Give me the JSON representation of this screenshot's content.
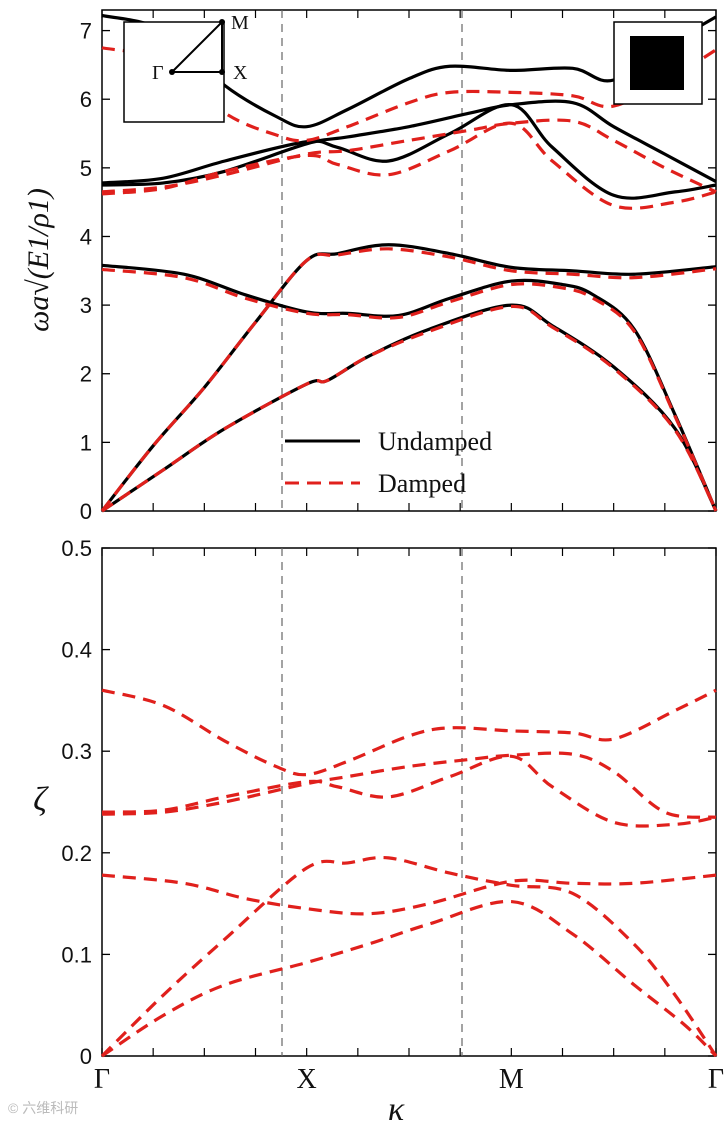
{
  "chart_data": [
    {
      "type": "line",
      "title": "",
      "ylabel": "ωa√(E1/ρ1)",
      "xlabel": "",
      "ylim": [
        0,
        7.3
      ],
      "yticks": [
        0,
        1,
        2,
        3,
        4,
        5,
        6,
        7
      ],
      "x_kpoints": [
        "Γ",
        "X",
        "M",
        "Γ"
      ],
      "x_kpoint_positions": [
        0,
        1,
        2,
        3
      ],
      "xlim": [
        0,
        3
      ],
      "legend": {
        "position": "center-bottom",
        "entries": [
          "Undamped",
          "Damped"
        ]
      },
      "inset_bz_labels": {
        "gamma": "Γ",
        "x": "X",
        "m": "M"
      },
      "inset_unit_cell": "filled-square",
      "series": [
        {
          "name": "Undamped",
          "style": "solid",
          "color": "#000000",
          "bands": [
            [
              [
                0,
                0
              ],
              [
                0.25,
                0.95
              ],
              [
                0.5,
                1.8
              ],
              [
                0.75,
                2.75
              ],
              [
                1,
                3.65
              ],
              [
                1.15,
                3.75
              ],
              [
                1.4,
                3.88
              ],
              [
                1.7,
                3.75
              ],
              [
                2,
                3.55
              ],
              [
                2.3,
                3.5
              ],
              [
                2.6,
                3.45
              ],
              [
                3,
                3.56
              ]
            ],
            [
              [
                0,
                0
              ],
              [
                0.3,
                0.6
              ],
              [
                0.6,
                1.2
              ],
              [
                1,
                1.85
              ],
              [
                1.1,
                1.9
              ],
              [
                1.3,
                2.25
              ],
              [
                1.6,
                2.65
              ],
              [
                2,
                3.0
              ],
              [
                2.2,
                2.7
              ],
              [
                2.5,
                2.1
              ],
              [
                2.8,
                1.2
              ],
              [
                3,
                0
              ]
            ],
            [
              [
                0,
                3.58
              ],
              [
                0.4,
                3.45
              ],
              [
                0.7,
                3.15
              ],
              [
                1,
                2.9
              ],
              [
                1.2,
                2.88
              ],
              [
                1.45,
                2.85
              ],
              [
                1.7,
                3.1
              ],
              [
                2,
                3.35
              ],
              [
                2.25,
                3.3
              ],
              [
                2.4,
                3.15
              ],
              [
                2.6,
                2.65
              ],
              [
                2.8,
                1.4
              ],
              [
                3,
                0
              ]
            ],
            [
              [
                0,
                4.75
              ],
              [
                0.3,
                4.78
              ],
              [
                0.6,
                4.95
              ],
              [
                1,
                5.35
              ],
              [
                1.2,
                5.45
              ],
              [
                1.5,
                5.6
              ],
              [
                1.8,
                5.8
              ],
              [
                2,
                5.92
              ],
              [
                2.3,
                5.95
              ],
              [
                2.5,
                5.6
              ],
              [
                2.75,
                5.2
              ],
              [
                3,
                4.8
              ]
            ],
            [
              [
                0,
                4.78
              ],
              [
                0.3,
                4.85
              ],
              [
                0.6,
                5.1
              ],
              [
                1,
                5.38
              ],
              [
                1.15,
                5.3
              ],
              [
                1.4,
                5.1
              ],
              [
                1.7,
                5.5
              ],
              [
                2,
                5.92
              ],
              [
                2.2,
                5.3
              ],
              [
                2.5,
                4.6
              ],
              [
                2.8,
                4.65
              ],
              [
                3,
                4.75
              ]
            ],
            [
              [
                0,
                7.22
              ],
              [
                0.3,
                7.0
              ],
              [
                0.6,
                6.2
              ],
              [
                0.85,
                5.75
              ],
              [
                1,
                5.6
              ],
              [
                1.2,
                5.85
              ],
              [
                1.5,
                6.3
              ],
              [
                1.7,
                6.48
              ],
              [
                2,
                6.42
              ],
              [
                2.3,
                6.45
              ],
              [
                2.5,
                6.28
              ],
              [
                2.8,
                6.85
              ],
              [
                3,
                7.2
              ]
            ]
          ]
        },
        {
          "name": "Damped",
          "style": "dashed",
          "color": "#e0201c",
          "bands": [
            [
              [
                0,
                0
              ],
              [
                0.25,
                0.95
              ],
              [
                0.5,
                1.8
              ],
              [
                0.75,
                2.75
              ],
              [
                1,
                3.65
              ],
              [
                1.15,
                3.73
              ],
              [
                1.4,
                3.82
              ],
              [
                1.7,
                3.7
              ],
              [
                2,
                3.5
              ],
              [
                2.3,
                3.45
              ],
              [
                2.6,
                3.4
              ],
              [
                3,
                3.53
              ]
            ],
            [
              [
                0,
                0
              ],
              [
                0.3,
                0.6
              ],
              [
                0.6,
                1.2
              ],
              [
                1,
                1.85
              ],
              [
                1.1,
                1.9
              ],
              [
                1.3,
                2.25
              ],
              [
                1.6,
                2.62
              ],
              [
                2,
                2.98
              ],
              [
                2.2,
                2.68
              ],
              [
                2.5,
                2.08
              ],
              [
                2.8,
                1.18
              ],
              [
                3,
                0
              ]
            ],
            [
              [
                0,
                3.52
              ],
              [
                0.4,
                3.4
              ],
              [
                0.7,
                3.1
              ],
              [
                1,
                2.88
              ],
              [
                1.2,
                2.86
              ],
              [
                1.45,
                2.82
              ],
              [
                1.7,
                3.05
              ],
              [
                2,
                3.3
              ],
              [
                2.25,
                3.25
              ],
              [
                2.4,
                3.1
              ],
              [
                2.6,
                2.62
              ],
              [
                2.8,
                1.38
              ],
              [
                3,
                0
              ]
            ],
            [
              [
                0,
                4.65
              ],
              [
                0.3,
                4.72
              ],
              [
                0.6,
                4.9
              ],
              [
                1,
                5.2
              ],
              [
                1.2,
                5.25
              ],
              [
                1.5,
                5.4
              ],
              [
                1.8,
                5.55
              ],
              [
                2,
                5.65
              ],
              [
                2.3,
                5.68
              ],
              [
                2.5,
                5.4
              ],
              [
                2.75,
                5.0
              ],
              [
                3,
                4.65
              ]
            ],
            [
              [
                0,
                4.62
              ],
              [
                0.3,
                4.7
              ],
              [
                0.6,
                4.95
              ],
              [
                1,
                5.18
              ],
              [
                1.15,
                5.05
              ],
              [
                1.4,
                4.9
              ],
              [
                1.7,
                5.25
              ],
              [
                2,
                5.65
              ],
              [
                2.2,
                5.1
              ],
              [
                2.5,
                4.45
              ],
              [
                2.8,
                4.5
              ],
              [
                3,
                4.65
              ]
            ],
            [
              [
                0,
                6.75
              ],
              [
                0.3,
                6.55
              ],
              [
                0.6,
                5.8
              ],
              [
                0.85,
                5.48
              ],
              [
                1,
                5.4
              ],
              [
                1.2,
                5.6
              ],
              [
                1.5,
                5.95
              ],
              [
                1.7,
                6.1
              ],
              [
                2,
                6.1
              ],
              [
                2.3,
                6.05
              ],
              [
                2.5,
                5.9
              ],
              [
                2.8,
                6.35
              ],
              [
                3,
                6.72
              ]
            ]
          ]
        }
      ]
    },
    {
      "type": "line",
      "title": "",
      "ylabel": "ζ",
      "xlabel": "κ",
      "ylim": [
        0,
        0.5
      ],
      "yticks": [
        "0",
        "0.1",
        "0.2",
        "0.3",
        "0.4",
        "0.5"
      ],
      "x_kpoints": [
        "Γ",
        "X",
        "M",
        "Γ"
      ],
      "x_kpoint_positions": [
        0,
        1,
        2,
        3
      ],
      "xlim": [
        0,
        3
      ],
      "series": [
        {
          "name": "Damped",
          "style": "dashed",
          "color": "#e0201c",
          "bands": [
            [
              [
                0,
                0.0
              ],
              [
                0.3,
                0.06
              ],
              [
                0.6,
                0.115
              ],
              [
                1,
                0.185
              ],
              [
                1.2,
                0.19
              ],
              [
                1.4,
                0.195
              ],
              [
                1.7,
                0.18
              ],
              [
                2,
                0.168
              ],
              [
                2.3,
                0.16
              ],
              [
                2.6,
                0.11
              ],
              [
                2.8,
                0.06
              ],
              [
                3,
                0.0
              ]
            ],
            [
              [
                0,
                0.0
              ],
              [
                0.3,
                0.04
              ],
              [
                0.6,
                0.07
              ],
              [
                1,
                0.092
              ],
              [
                1.3,
                0.11
              ],
              [
                1.6,
                0.13
              ],
              [
                2,
                0.152
              ],
              [
                2.3,
                0.12
              ],
              [
                2.6,
                0.07
              ],
              [
                2.85,
                0.03
              ],
              [
                3,
                0.0
              ]
            ],
            [
              [
                0,
                0.178
              ],
              [
                0.4,
                0.17
              ],
              [
                0.7,
                0.155
              ],
              [
                1,
                0.145
              ],
              [
                1.3,
                0.14
              ],
              [
                1.6,
                0.15
              ],
              [
                2,
                0.172
              ],
              [
                2.3,
                0.17
              ],
              [
                2.6,
                0.17
              ],
              [
                3,
                0.178
              ]
            ],
            [
              [
                0,
                0.238
              ],
              [
                0.3,
                0.24
              ],
              [
                0.6,
                0.25
              ],
              [
                1,
                0.268
              ],
              [
                1.2,
                0.275
              ],
              [
                1.5,
                0.285
              ],
              [
                1.8,
                0.292
              ],
              [
                2,
                0.296
              ],
              [
                2.3,
                0.297
              ],
              [
                2.5,
                0.28
              ],
              [
                2.75,
                0.24
              ],
              [
                3,
                0.235
              ]
            ],
            [
              [
                0,
                0.24
              ],
              [
                0.3,
                0.242
              ],
              [
                0.6,
                0.255
              ],
              [
                1,
                0.27
              ],
              [
                1.15,
                0.265
              ],
              [
                1.4,
                0.255
              ],
              [
                1.7,
                0.275
              ],
              [
                2,
                0.295
              ],
              [
                2.2,
                0.265
              ],
              [
                2.5,
                0.23
              ],
              [
                2.8,
                0.228
              ],
              [
                3,
                0.235
              ]
            ],
            [
              [
                0,
                0.36
              ],
              [
                0.3,
                0.345
              ],
              [
                0.6,
                0.31
              ],
              [
                0.85,
                0.285
              ],
              [
                1,
                0.277
              ],
              [
                1.2,
                0.29
              ],
              [
                1.5,
                0.315
              ],
              [
                1.7,
                0.323
              ],
              [
                2,
                0.32
              ],
              [
                2.3,
                0.318
              ],
              [
                2.5,
                0.312
              ],
              [
                2.8,
                0.34
              ],
              [
                3,
                0.36
              ]
            ]
          ]
        }
      ]
    }
  ],
  "watermark": "© 六维科研"
}
